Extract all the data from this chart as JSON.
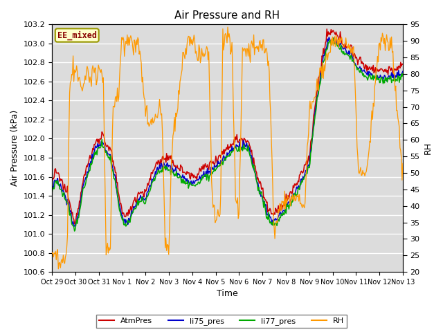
{
  "title": "Air Pressure and RH",
  "xlabel": "Time",
  "ylabel_left": "Air Pressure (kPa)",
  "ylabel_right": "RH",
  "annotation": "EE_mixed",
  "ylim_left": [
    100.6,
    103.2
  ],
  "ylim_right": [
    20,
    95
  ],
  "yticks_left": [
    100.6,
    100.8,
    101.0,
    101.2,
    101.4,
    101.6,
    101.8,
    102.0,
    102.2,
    102.4,
    102.6,
    102.8,
    103.0,
    103.2
  ],
  "yticks_right": [
    20,
    25,
    30,
    35,
    40,
    45,
    50,
    55,
    60,
    65,
    70,
    75,
    80,
    85,
    90,
    95
  ],
  "xtick_labels": [
    "Oct 29",
    "Oct 30",
    "Oct 31",
    "Nov 1",
    "Nov 2",
    "Nov 3",
    "Nov 4",
    "Nov 5",
    "Nov 6",
    "Nov 7",
    "Nov 8",
    "Nov 9",
    "Nov 10",
    "Nov 11",
    "Nov 12",
    "Nov 13"
  ],
  "n_xticks": 16,
  "colors": {
    "AtmPres": "#cc0000",
    "li75_pres": "#0000cc",
    "li77_pres": "#00aa00",
    "RH": "#ff9900",
    "background": "#dcdcdc",
    "grid": "#ffffff"
  },
  "legend_labels": [
    "AtmPres",
    "li75_pres",
    "li77_pres",
    "RH"
  ],
  "legend_colors": [
    "#cc0000",
    "#0000cc",
    "#00aa00",
    "#ff9900"
  ],
  "figsize": [
    6.4,
    4.8
  ],
  "dpi": 100,
  "atm_ctrl_x": [
    0,
    0.15,
    0.3,
    0.5,
    0.7,
    0.85,
    1.0,
    1.15,
    1.3,
    1.5,
    1.7,
    1.85,
    2.0,
    2.15,
    2.3,
    2.5,
    2.7,
    2.85,
    3.0,
    3.15,
    3.3,
    3.5,
    3.7,
    3.85,
    4.0,
    4.15,
    4.3,
    4.5,
    4.7,
    4.85,
    5.0,
    5.15,
    5.3,
    5.5,
    5.7,
    5.85,
    6.0,
    6.15,
    6.3,
    6.5,
    6.7,
    6.85,
    7.0,
    7.15,
    7.3,
    7.5,
    7.7,
    7.85,
    8.0,
    8.2,
    8.4,
    8.6,
    8.8,
    9.0,
    9.2,
    9.4,
    9.6,
    9.8,
    10.0,
    10.2,
    10.5,
    10.8,
    11.0,
    11.3,
    11.6,
    11.8,
    12.0,
    12.3,
    12.5,
    12.8,
    13.0,
    13.3,
    13.5,
    14.0,
    14.5,
    15.0
  ],
  "atm_ctrl_y": [
    101.55,
    101.65,
    101.6,
    101.5,
    101.4,
    101.2,
    101.15,
    101.3,
    101.55,
    101.7,
    101.85,
    101.95,
    102.0,
    102.05,
    101.95,
    101.88,
    101.65,
    101.4,
    101.25,
    101.18,
    101.22,
    101.35,
    101.42,
    101.45,
    101.42,
    101.55,
    101.65,
    101.75,
    101.78,
    101.8,
    101.78,
    101.76,
    101.72,
    101.68,
    101.65,
    101.62,
    101.6,
    101.62,
    101.65,
    101.7,
    101.72,
    101.75,
    101.78,
    101.82,
    101.85,
    101.9,
    101.95,
    102.0,
    101.98,
    102.0,
    101.98,
    101.8,
    101.58,
    101.45,
    101.3,
    101.2,
    101.22,
    101.28,
    101.35,
    101.42,
    101.55,
    101.7,
    101.8,
    102.45,
    102.9,
    103.1,
    103.12,
    103.05,
    103.0,
    102.95,
    102.85,
    102.78,
    102.75,
    102.72,
    102.72,
    102.75
  ],
  "rh_ctrl_x": [
    0,
    0.1,
    0.2,
    0.35,
    0.5,
    0.65,
    0.75,
    0.85,
    0.95,
    1.05,
    1.15,
    1.3,
    1.4,
    1.5,
    1.65,
    1.8,
    1.9,
    2.0,
    2.1,
    2.2,
    2.3,
    2.5,
    2.6,
    2.7,
    2.85,
    3.0,
    3.1,
    3.2,
    3.35,
    3.5,
    3.6,
    3.7,
    3.85,
    4.0,
    4.15,
    4.3,
    4.5,
    4.6,
    4.7,
    4.85,
    5.0,
    5.15,
    5.3,
    5.45,
    5.6,
    5.75,
    5.9,
    6.0,
    6.1,
    6.2,
    6.35,
    6.5,
    6.6,
    6.7,
    6.85,
    7.0,
    7.1,
    7.2,
    7.3,
    7.5,
    7.6,
    7.7,
    7.85,
    8.0,
    8.15,
    8.3,
    8.5,
    8.7,
    8.85,
    9.0,
    9.15,
    9.3,
    9.5,
    9.7,
    9.85,
    10.0,
    10.2,
    10.5,
    10.8,
    11.0,
    11.2,
    11.5,
    11.8,
    12.0,
    12.3,
    12.5,
    12.7,
    12.9,
    13.1,
    13.3,
    13.5,
    14.0,
    14.5,
    15.0
  ],
  "rh_ctrl_y": [
    26,
    25,
    24,
    23,
    24,
    26,
    75,
    80,
    82,
    80,
    78,
    75,
    78,
    80,
    78,
    81,
    80,
    82,
    80,
    78,
    27,
    26,
    70,
    72,
    75,
    90,
    91,
    90,
    89,
    88,
    89,
    90,
    80,
    68,
    65,
    65,
    67,
    70,
    68,
    28,
    27,
    62,
    65,
    75,
    87,
    88,
    89,
    90,
    89,
    86,
    86,
    87,
    87,
    86,
    42,
    35,
    38,
    38,
    90,
    91,
    90,
    88,
    42,
    38,
    88,
    87,
    88,
    89,
    88,
    88,
    87,
    80,
    30,
    38,
    42,
    42,
    42,
    42,
    40,
    68,
    72,
    80,
    85,
    90,
    90,
    89,
    88,
    87,
    50,
    50,
    52,
    90,
    90,
    50
  ]
}
